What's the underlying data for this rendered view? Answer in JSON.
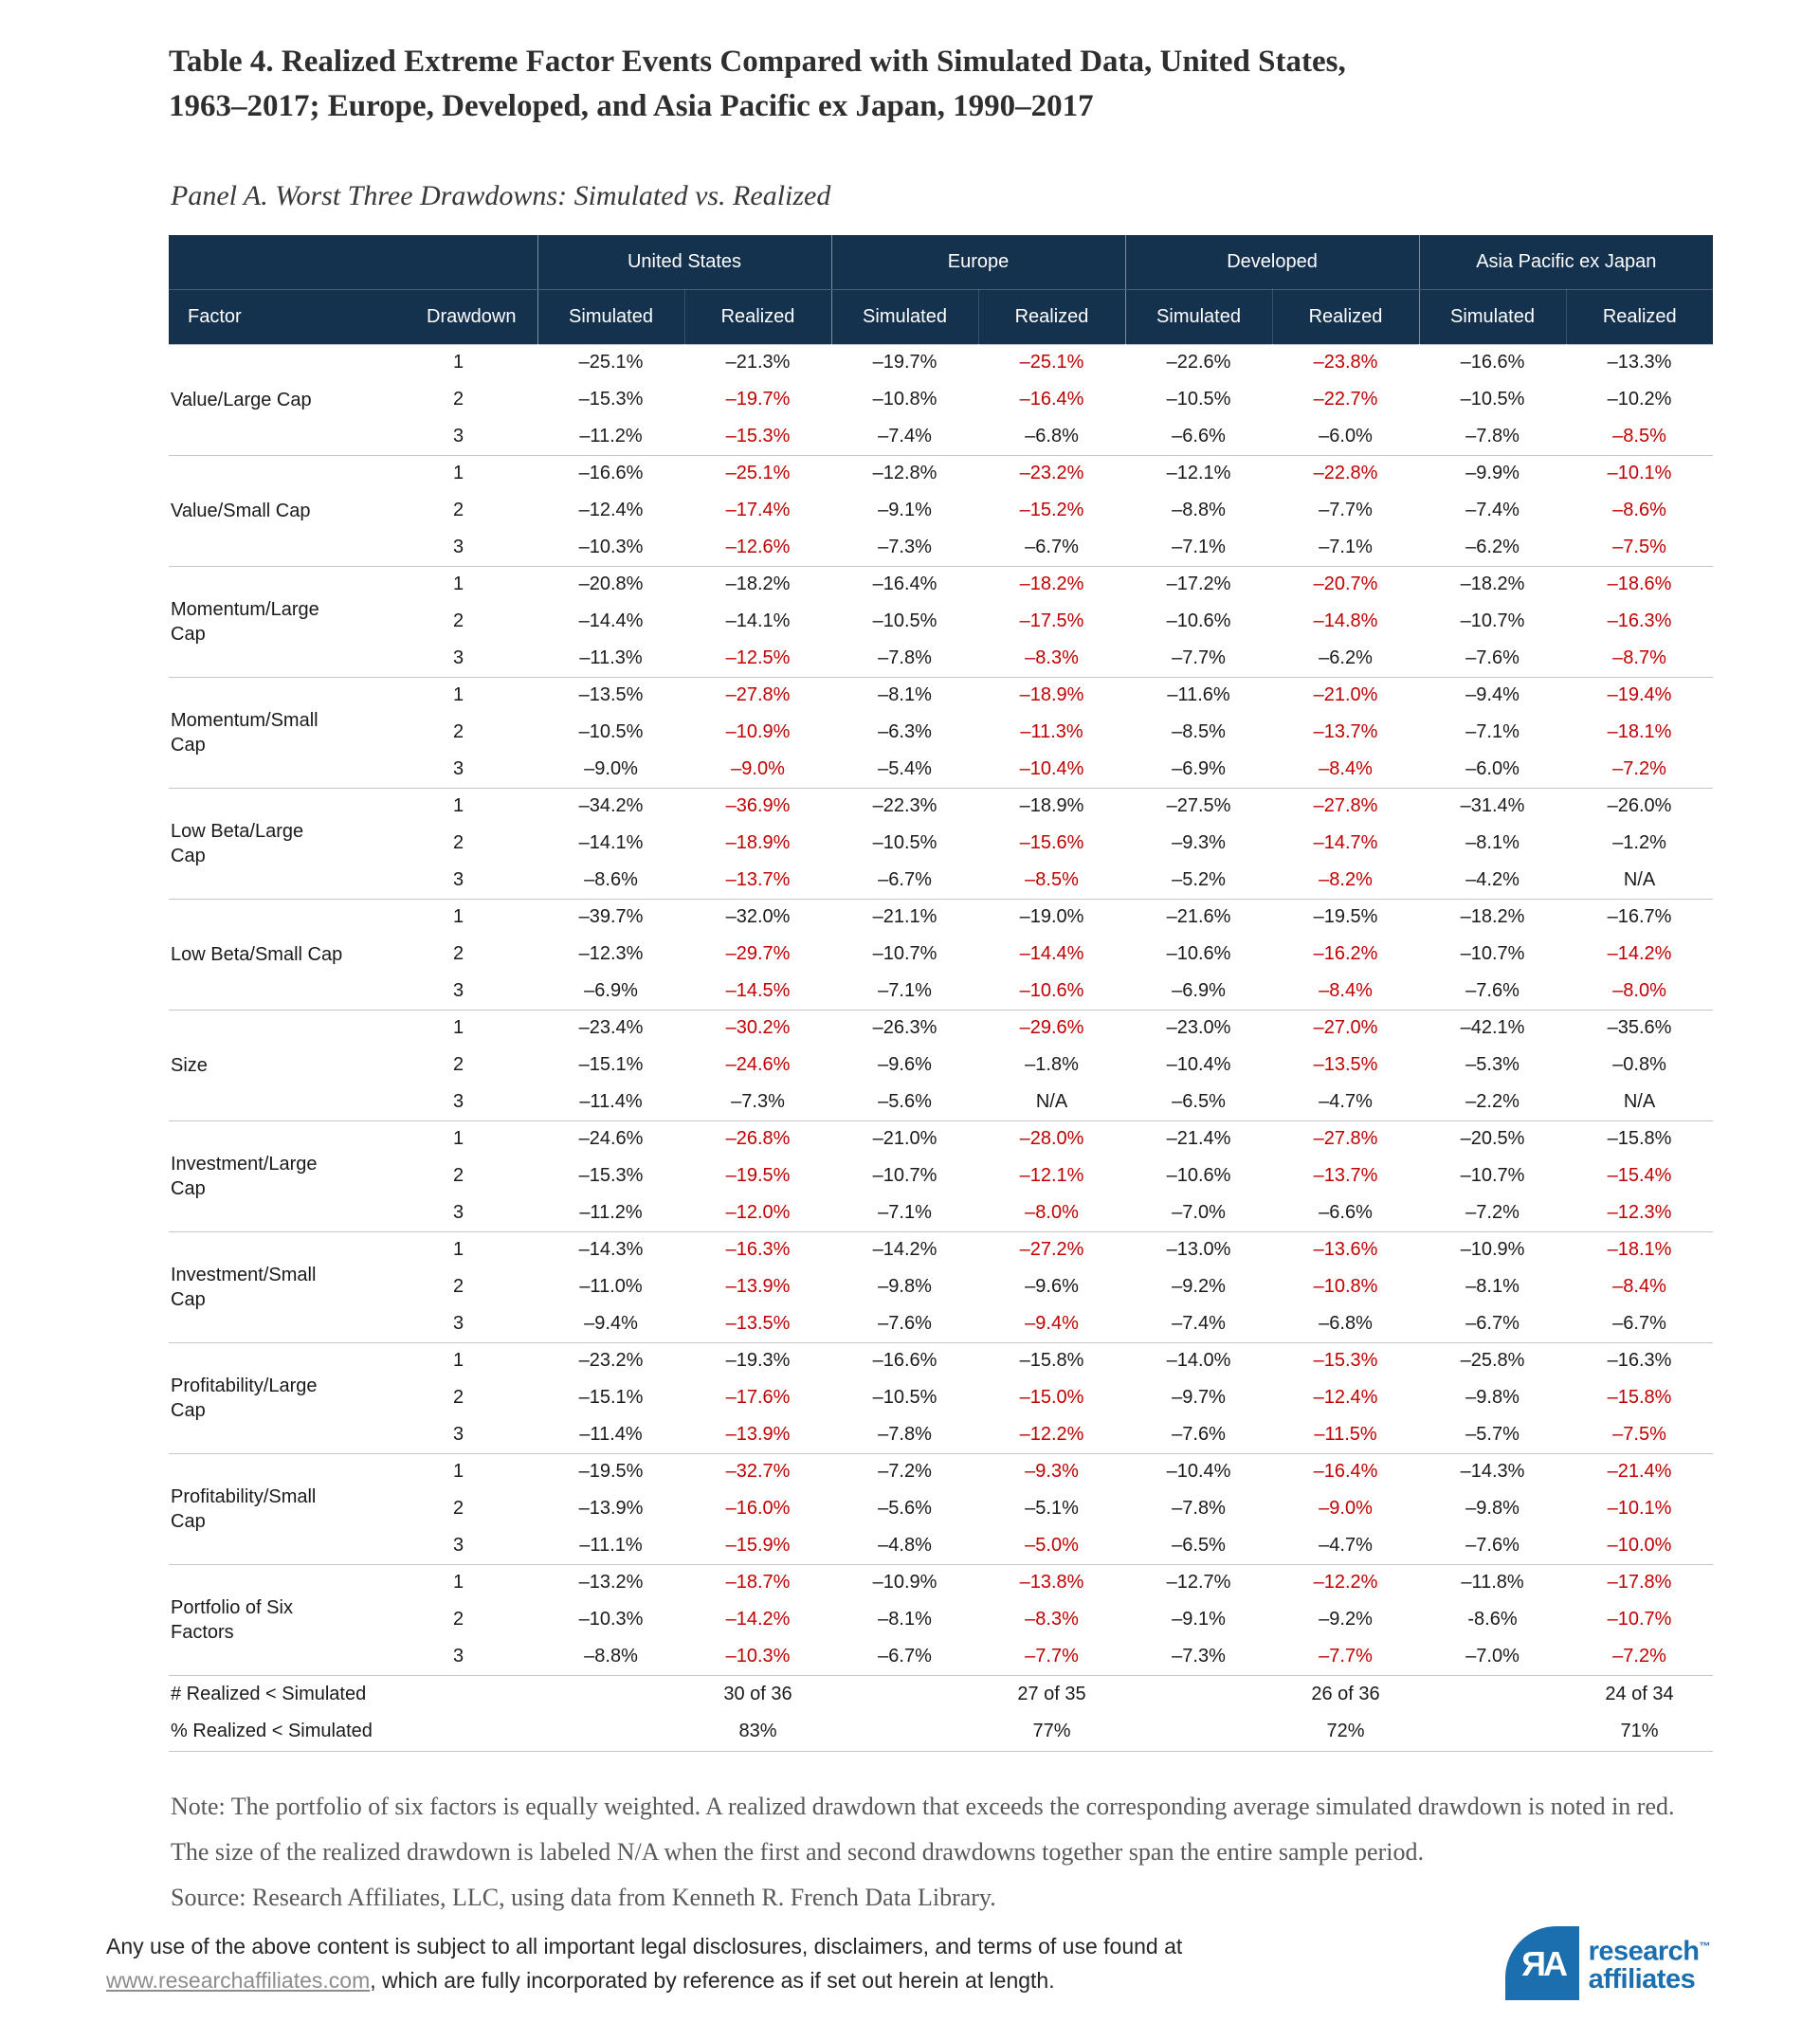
{
  "title_line1": "Table 4. Realized Extreme Factor Events Compared with Simulated Data, United States,",
  "title_line2": "1963–2017; Europe, Developed, and Asia Pacific ex Japan, 1990–2017",
  "panel_title": "Panel A. Worst Three Drawdowns: Simulated vs. Realized",
  "colors": {
    "header_bg": "#14314D",
    "highlight_red": "#C00000",
    "logo_blue": "#1B6FAE"
  },
  "table": {
    "col1_header": "Factor",
    "col2_header": "Drawdown",
    "region_groups": [
      "United States",
      "Europe",
      "Developed",
      "Asia Pacific ex Japan"
    ],
    "sub_headers": [
      "Simulated",
      "Realized"
    ],
    "factors": [
      {
        "name": "Value/Large Cap",
        "rows": [
          {
            "d": "1",
            "v": [
              "–25.1%",
              "–21.3%",
              "–19.7%",
              "–25.1%",
              "–22.6%",
              "–23.8%",
              "–16.6%",
              "–13.3%"
            ],
            "r": [
              0,
              0,
              0,
              1,
              0,
              1,
              0,
              0
            ]
          },
          {
            "d": "2",
            "v": [
              "–15.3%",
              "–19.7%",
              "–10.8%",
              "–16.4%",
              "–10.5%",
              "–22.7%",
              "–10.5%",
              "–10.2%"
            ],
            "r": [
              0,
              1,
              0,
              1,
              0,
              1,
              0,
              0
            ]
          },
          {
            "d": "3",
            "v": [
              "–11.2%",
              "–15.3%",
              "–7.4%",
              "–6.8%",
              "–6.6%",
              "–6.0%",
              "–7.8%",
              "–8.5%"
            ],
            "r": [
              0,
              1,
              0,
              0,
              0,
              0,
              0,
              1
            ]
          }
        ]
      },
      {
        "name": "Value/Small Cap",
        "rows": [
          {
            "d": "1",
            "v": [
              "–16.6%",
              "–25.1%",
              "–12.8%",
              "–23.2%",
              "–12.1%",
              "–22.8%",
              "–9.9%",
              "–10.1%"
            ],
            "r": [
              0,
              1,
              0,
              1,
              0,
              1,
              0,
              1
            ]
          },
          {
            "d": "2",
            "v": [
              "–12.4%",
              "–17.4%",
              "–9.1%",
              "–15.2%",
              "–8.8%",
              "–7.7%",
              "–7.4%",
              "–8.6%"
            ],
            "r": [
              0,
              1,
              0,
              1,
              0,
              0,
              0,
              1
            ]
          },
          {
            "d": "3",
            "v": [
              "–10.3%",
              "–12.6%",
              "–7.3%",
              "–6.7%",
              "–7.1%",
              "–7.1%",
              "–6.2%",
              "–7.5%"
            ],
            "r": [
              0,
              1,
              0,
              0,
              0,
              0,
              0,
              1
            ]
          }
        ]
      },
      {
        "name": "Momentum/Large Cap",
        "rows": [
          {
            "d": "1",
            "v": [
              "–20.8%",
              "–18.2%",
              "–16.4%",
              "–18.2%",
              "–17.2%",
              "–20.7%",
              "–18.2%",
              "–18.6%"
            ],
            "r": [
              0,
              0,
              0,
              1,
              0,
              1,
              0,
              1
            ]
          },
          {
            "d": "2",
            "v": [
              "–14.4%",
              "–14.1%",
              "–10.5%",
              "–17.5%",
              "–10.6%",
              "–14.8%",
              "–10.7%",
              "–16.3%"
            ],
            "r": [
              0,
              0,
              0,
              1,
              0,
              1,
              0,
              1
            ]
          },
          {
            "d": "3",
            "v": [
              "–11.3%",
              "–12.5%",
              "–7.8%",
              "–8.3%",
              "–7.7%",
              "–6.2%",
              "–7.6%",
              "–8.7%"
            ],
            "r": [
              0,
              1,
              0,
              1,
              0,
              0,
              0,
              1
            ]
          }
        ]
      },
      {
        "name": "Momentum/Small Cap",
        "rows": [
          {
            "d": "1",
            "v": [
              "–13.5%",
              "–27.8%",
              "–8.1%",
              "–18.9%",
              "–11.6%",
              "–21.0%",
              "–9.4%",
              "–19.4%"
            ],
            "r": [
              0,
              1,
              0,
              1,
              0,
              1,
              0,
              1
            ]
          },
          {
            "d": "2",
            "v": [
              "–10.5%",
              "–10.9%",
              "–6.3%",
              "–11.3%",
              "–8.5%",
              "–13.7%",
              "–7.1%",
              "–18.1%"
            ],
            "r": [
              0,
              1,
              0,
              1,
              0,
              1,
              0,
              1
            ]
          },
          {
            "d": "3",
            "v": [
              "–9.0%",
              "–9.0%",
              "–5.4%",
              "–10.4%",
              "–6.9%",
              "–8.4%",
              "–6.0%",
              "–7.2%"
            ],
            "r": [
              0,
              1,
              0,
              1,
              0,
              1,
              0,
              1
            ]
          }
        ]
      },
      {
        "name": "Low Beta/Large Cap",
        "rows": [
          {
            "d": "1",
            "v": [
              "–34.2%",
              "–36.9%",
              "–22.3%",
              "–18.9%",
              "–27.5%",
              "–27.8%",
              "–31.4%",
              "–26.0%"
            ],
            "r": [
              0,
              1,
              0,
              0,
              0,
              1,
              0,
              0
            ]
          },
          {
            "d": "2",
            "v": [
              "–14.1%",
              "–18.9%",
              "–10.5%",
              "–15.6%",
              "–9.3%",
              "–14.7%",
              "–8.1%",
              "–1.2%"
            ],
            "r": [
              0,
              1,
              0,
              1,
              0,
              1,
              0,
              0
            ]
          },
          {
            "d": "3",
            "v": [
              "–8.6%",
              "–13.7%",
              "–6.7%",
              "–8.5%",
              "–5.2%",
              "–8.2%",
              "–4.2%",
              "N/A"
            ],
            "r": [
              0,
              1,
              0,
              1,
              0,
              1,
              0,
              0
            ]
          }
        ]
      },
      {
        "name": "Low Beta/Small Cap",
        "rows": [
          {
            "d": "1",
            "v": [
              "–39.7%",
              "–32.0%",
              "–21.1%",
              "–19.0%",
              "–21.6%",
              "–19.5%",
              "–18.2%",
              "–16.7%"
            ],
            "r": [
              0,
              0,
              0,
              0,
              0,
              0,
              0,
              0
            ]
          },
          {
            "d": "2",
            "v": [
              "–12.3%",
              "–29.7%",
              "–10.7%",
              "–14.4%",
              "–10.6%",
              "–16.2%",
              "–10.7%",
              "–14.2%"
            ],
            "r": [
              0,
              1,
              0,
              1,
              0,
              1,
              0,
              1
            ]
          },
          {
            "d": "3",
            "v": [
              "–6.9%",
              "–14.5%",
              "–7.1%",
              "–10.6%",
              "–6.9%",
              "–8.4%",
              "–7.6%",
              "–8.0%"
            ],
            "r": [
              0,
              1,
              0,
              1,
              0,
              1,
              0,
              1
            ]
          }
        ]
      },
      {
        "name": "Size",
        "rows": [
          {
            "d": "1",
            "v": [
              "–23.4%",
              "–30.2%",
              "–26.3%",
              "–29.6%",
              "–23.0%",
              "–27.0%",
              "–42.1%",
              "–35.6%"
            ],
            "r": [
              0,
              1,
              0,
              1,
              0,
              1,
              0,
              0
            ]
          },
          {
            "d": "2",
            "v": [
              "–15.1%",
              "–24.6%",
              "–9.6%",
              "–1.8%",
              "–10.4%",
              "–13.5%",
              "–5.3%",
              "–0.8%"
            ],
            "r": [
              0,
              1,
              0,
              0,
              0,
              1,
              0,
              0
            ]
          },
          {
            "d": "3",
            "v": [
              "–11.4%",
              "–7.3%",
              "–5.6%",
              "N/A",
              "–6.5%",
              "–4.7%",
              "–2.2%",
              "N/A"
            ],
            "r": [
              0,
              0,
              0,
              0,
              0,
              0,
              0,
              0
            ]
          }
        ]
      },
      {
        "name": "Investment/Large Cap",
        "rows": [
          {
            "d": "1",
            "v": [
              "–24.6%",
              "–26.8%",
              "–21.0%",
              "–28.0%",
              "–21.4%",
              "–27.8%",
              "–20.5%",
              "–15.8%"
            ],
            "r": [
              0,
              1,
              0,
              1,
              0,
              1,
              0,
              0
            ]
          },
          {
            "d": "2",
            "v": [
              "–15.3%",
              "–19.5%",
              "–10.7%",
              "–12.1%",
              "–10.6%",
              "–13.7%",
              "–10.7%",
              "–15.4%"
            ],
            "r": [
              0,
              1,
              0,
              1,
              0,
              1,
              0,
              1
            ]
          },
          {
            "d": "3",
            "v": [
              "–11.2%",
              "–12.0%",
              "–7.1%",
              "–8.0%",
              "–7.0%",
              "–6.6%",
              "–7.2%",
              "–12.3%"
            ],
            "r": [
              0,
              1,
              0,
              1,
              0,
              0,
              0,
              1
            ]
          }
        ]
      },
      {
        "name": "Investment/Small Cap",
        "rows": [
          {
            "d": "1",
            "v": [
              "–14.3%",
              "–16.3%",
              "–14.2%",
              "–27.2%",
              "–13.0%",
              "–13.6%",
              "–10.9%",
              "–18.1%"
            ],
            "r": [
              0,
              1,
              0,
              1,
              0,
              1,
              0,
              1
            ]
          },
          {
            "d": "2",
            "v": [
              "–11.0%",
              "–13.9%",
              "–9.8%",
              "–9.6%",
              "–9.2%",
              "–10.8%",
              "–8.1%",
              "–8.4%"
            ],
            "r": [
              0,
              1,
              0,
              0,
              0,
              1,
              0,
              1
            ]
          },
          {
            "d": "3",
            "v": [
              "–9.4%",
              "–13.5%",
              "–7.6%",
              "–9.4%",
              "–7.4%",
              "–6.8%",
              "–6.7%",
              "–6.7%"
            ],
            "r": [
              0,
              1,
              0,
              1,
              0,
              0,
              0,
              0
            ]
          }
        ]
      },
      {
        "name": "Profitability/Large Cap",
        "rows": [
          {
            "d": "1",
            "v": [
              "–23.2%",
              "–19.3%",
              "–16.6%",
              "–15.8%",
              "–14.0%",
              "–15.3%",
              "–25.8%",
              "–16.3%"
            ],
            "r": [
              0,
              0,
              0,
              0,
              0,
              1,
              0,
              0
            ]
          },
          {
            "d": "2",
            "v": [
              "–15.1%",
              "–17.6%",
              "–10.5%",
              "–15.0%",
              "–9.7%",
              "–12.4%",
              "–9.8%",
              "–15.8%"
            ],
            "r": [
              0,
              1,
              0,
              1,
              0,
              1,
              0,
              1
            ]
          },
          {
            "d": "3",
            "v": [
              "–11.4%",
              "–13.9%",
              "–7.8%",
              "–12.2%",
              "–7.6%",
              "–11.5%",
              "–5.7%",
              "–7.5%"
            ],
            "r": [
              0,
              1,
              0,
              1,
              0,
              1,
              0,
              1
            ]
          }
        ]
      },
      {
        "name": "Profitability/Small Cap",
        "rows": [
          {
            "d": "1",
            "v": [
              "–19.5%",
              "–32.7%",
              "–7.2%",
              "–9.3%",
              "–10.4%",
              "–16.4%",
              "–14.3%",
              "–21.4%"
            ],
            "r": [
              0,
              1,
              0,
              1,
              0,
              1,
              0,
              1
            ]
          },
          {
            "d": "2",
            "v": [
              "–13.9%",
              "–16.0%",
              "–5.6%",
              "–5.1%",
              "–7.8%",
              "–9.0%",
              "–9.8%",
              "–10.1%"
            ],
            "r": [
              0,
              1,
              0,
              0,
              0,
              1,
              0,
              1
            ]
          },
          {
            "d": "3",
            "v": [
              "–11.1%",
              "–15.9%",
              "–4.8%",
              "–5.0%",
              "–6.5%",
              "–4.7%",
              "–7.6%",
              "–10.0%"
            ],
            "r": [
              0,
              1,
              0,
              1,
              0,
              0,
              0,
              1
            ]
          }
        ]
      },
      {
        "name": "Portfolio of Six Factors",
        "rows": [
          {
            "d": "1",
            "v": [
              "–13.2%",
              "–18.7%",
              "–10.9%",
              "–13.8%",
              "–12.7%",
              "–12.2%",
              "–11.8%",
              "–17.8%"
            ],
            "r": [
              0,
              1,
              0,
              1,
              0,
              1,
              0,
              1
            ]
          },
          {
            "d": "2",
            "v": [
              "–10.3%",
              "–14.2%",
              "–8.1%",
              "–8.3%",
              "–9.1%",
              "–9.2%",
              "-8.6%",
              "–10.7%"
            ],
            "r": [
              0,
              1,
              0,
              1,
              0,
              0,
              0,
              1
            ]
          },
          {
            "d": "3",
            "v": [
              "–8.8%",
              "–10.3%",
              "–6.7%",
              "–7.7%",
              "–7.3%",
              "–7.7%",
              "–7.0%",
              "–7.2%"
            ],
            "r": [
              0,
              1,
              0,
              1,
              0,
              1,
              0,
              1
            ]
          }
        ]
      }
    ],
    "summary": [
      {
        "label": "# Realized < Simulated",
        "values": [
          "30 of 36",
          "27 of 35",
          "26 of 36",
          "24 of 34"
        ]
      },
      {
        "label": "% Realized < Simulated",
        "values": [
          "83%",
          "77%",
          "72%",
          "71%"
        ]
      }
    ]
  },
  "note": {
    "line1": "Note: The portfolio of six factors is equally weighted. A realized drawdown that exceeds the corresponding average simulated drawdown is noted in red.",
    "line2": "The size of the realized drawdown is labeled N/A when the first and second drawdowns together span the entire sample period.",
    "source": "Source: Research Affiliates, LLC, using data from Kenneth R. French Data Library."
  },
  "footer": {
    "line1": "Any use of the above content is subject to all important legal disclosures, disclaimers, and terms of use found at",
    "link_text": "www.researchaffiliates.com",
    "line2_rest": ", which are fully incorporated by reference as if set out herein at length."
  },
  "logo": {
    "monogram": "ЯA",
    "wordmark_line1": "research",
    "trademark": "™",
    "wordmark_line2": "affiliates"
  }
}
